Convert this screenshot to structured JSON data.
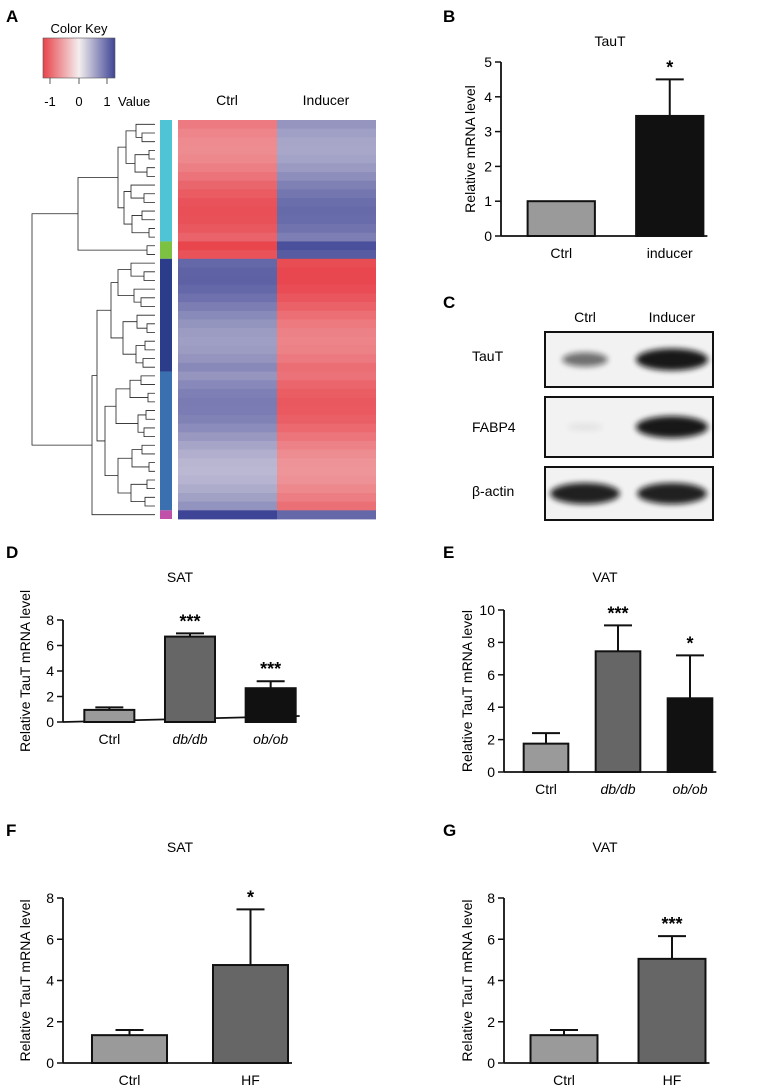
{
  "colors": {
    "ctrl_bar": "#9a9a9a",
    "dark_bar": "#666666",
    "black_bar": "#111111",
    "heat_red": "#e8434b",
    "heat_blue": "#3f4596",
    "heat_white": "#f4eeee",
    "cluster_cyan": "#4ec4d4",
    "cluster_green": "#7cc142",
    "cluster_navy": "#2a3c8a",
    "cluster_blue": "#3a6fb0",
    "cluster_magenta": "#c050a8"
  },
  "panel_letters": [
    "A",
    "B",
    "C",
    "D",
    "E",
    "F",
    "G"
  ],
  "heatmap": {
    "color_key_title": "Color Key",
    "key_ticks": [
      "-1",
      "0",
      "1"
    ],
    "key_value_label": "Value",
    "columns": [
      "Ctrl",
      "Inducer"
    ],
    "clusters": [
      {
        "color": "cluster_cyan",
        "rows": 14,
        "ctrl": -0.75,
        "inducer": 0.6
      },
      {
        "color": "cluster_green",
        "rows": 2,
        "ctrl": -1.0,
        "inducer": 0.95
      },
      {
        "color": "cluster_navy",
        "rows": 13,
        "ctrl": 0.65,
        "inducer": -0.8
      },
      {
        "color": "cluster_blue",
        "rows": 16,
        "ctrl": 0.5,
        "inducer": -0.7
      },
      {
        "color": "cluster_magenta",
        "rows": 1,
        "ctrl": 0.9,
        "inducer": 0.9
      }
    ]
  },
  "western_blot": {
    "lanes": [
      "Ctrl",
      "Inducer"
    ],
    "rows": [
      {
        "label": "TauT",
        "ctrl_intensity": 0.45,
        "inducer_intensity": 1.0
      },
      {
        "label": "FABP4",
        "ctrl_intensity": 0.03,
        "inducer_intensity": 1.0
      },
      {
        "label": "β-actin",
        "ctrl_intensity": 0.95,
        "inducer_intensity": 0.95
      }
    ]
  },
  "chart_data": [
    {
      "panel": "B",
      "type": "bar",
      "title": "TauT",
      "ylabel": "Relative mRNA level",
      "ylim": [
        0,
        5
      ],
      "yticks": [
        "0",
        "1",
        "2",
        "3",
        "4",
        "5"
      ],
      "categories": [
        "Ctrl",
        "inducer"
      ],
      "italic_categories": false,
      "values": [
        1.0,
        3.45
      ],
      "errors": [
        0,
        1.05
      ],
      "bar_colors": [
        "ctrl_bar",
        "black_bar"
      ],
      "significance": [
        "",
        "*"
      ]
    },
    {
      "panel": "D",
      "type": "bar",
      "title": "SAT",
      "ylabel": "Relative TauT mRNA level",
      "ylim": [
        0,
        8
      ],
      "yticks": [
        "0",
        "2",
        "4",
        "6",
        "8"
      ],
      "categories": [
        "Ctrl",
        "db/db",
        "ob/ob"
      ],
      "italic_categories": true,
      "values": [
        0.95,
        6.7,
        2.65
      ],
      "errors": [
        0.2,
        0.25,
        0.55
      ],
      "bar_colors": [
        "ctrl_bar",
        "dark_bar",
        "black_bar"
      ],
      "significance": [
        "",
        "***",
        "***"
      ]
    },
    {
      "panel": "E",
      "type": "bar",
      "title": "VAT",
      "ylabel": "Relative TauT mRNA level",
      "ylim": [
        0,
        10
      ],
      "yticks": [
        "0",
        "2",
        "4",
        "6",
        "8",
        "10"
      ],
      "categories": [
        "Ctrl",
        "db/db",
        "ob/ob"
      ],
      "italic_categories": true,
      "values": [
        1.75,
        7.45,
        4.55
      ],
      "errors": [
        0.65,
        1.6,
        2.65
      ],
      "bar_colors": [
        "ctrl_bar",
        "dark_bar",
        "black_bar"
      ],
      "significance": [
        "",
        "***",
        "*"
      ]
    },
    {
      "panel": "F",
      "type": "bar",
      "title": "SAT",
      "ylabel": "Relative TauT mRNA level",
      "ylim": [
        0,
        8
      ],
      "yticks": [
        "0",
        "2",
        "4",
        "6",
        "8"
      ],
      "categories": [
        "Ctrl",
        "HF"
      ],
      "italic_categories": false,
      "values": [
        1.35,
        4.75
      ],
      "errors": [
        0.25,
        2.7
      ],
      "bar_colors": [
        "ctrl_bar",
        "dark_bar"
      ],
      "significance": [
        "",
        "*"
      ]
    },
    {
      "panel": "G",
      "type": "bar",
      "title": "VAT",
      "ylabel": "Relative TauT mRNA level",
      "ylim": [
        0,
        8
      ],
      "yticks": [
        "0",
        "2",
        "4",
        "6",
        "8"
      ],
      "categories": [
        "Ctrl",
        "HF"
      ],
      "italic_categories": false,
      "values": [
        1.35,
        5.05
      ],
      "errors": [
        0.25,
        1.1
      ],
      "bar_colors": [
        "ctrl_bar",
        "dark_bar"
      ],
      "significance": [
        "",
        "***"
      ]
    }
  ]
}
